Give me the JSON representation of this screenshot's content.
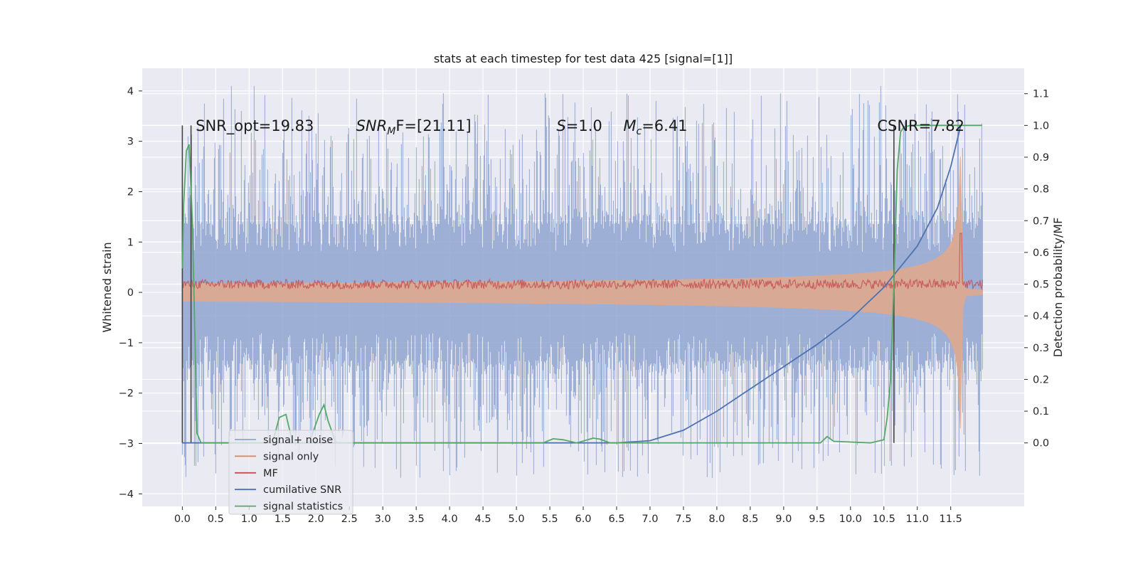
{
  "chart_data": {
    "type": "line",
    "title": "stats at each timestep for test data 425 [signal=[1]]",
    "xlabel": "",
    "ylabel": "Whitened strain",
    "ylabel_right": "Detection probability/MF",
    "xlim": [
      -0.6,
      12.6
    ],
    "ylim": [
      -4.25,
      4.45
    ],
    "ylim_right": [
      -0.2,
      1.18
    ],
    "x_ticks": [
      "0.0",
      "0.5",
      "1.0",
      "1.5",
      "2.0",
      "2.5",
      "3.0",
      "3.5",
      "4.0",
      "4.5",
      "5.0",
      "5.5",
      "6.0",
      "6.5",
      "7.0",
      "7.5",
      "8.0",
      "8.5",
      "9.0",
      "9.5",
      "10.0",
      "10.5",
      "11.0",
      "11.5"
    ],
    "y_ticks": [
      "4",
      "3",
      "2",
      "1",
      "0",
      "−1",
      "−2",
      "−3",
      "−4"
    ],
    "y_ticks_right": [
      "1.1",
      "1.0",
      "0.9",
      "0.8",
      "0.7",
      "0.6",
      "0.5",
      "0.4",
      "0.3",
      "0.2",
      "0.1",
      "0.0"
    ],
    "grid": true,
    "legend_placement": "lower-left",
    "annotations": [
      {
        "text": "SNR_opt=19.83",
        "x": 0.2
      },
      {
        "text": "SNR",
        "sub": "M",
        "tail": "F=[21.11]",
        "x": 2.6
      },
      {
        "text": "S",
        "tail": "=1.0",
        "x": 5.6
      },
      {
        "text": "M",
        "sub": "c",
        "tail": "=6.41",
        "x": 6.6
      },
      {
        "text": "CSNR=7.82",
        "x": 10.4
      }
    ],
    "vlines": [
      0.0,
      0.13,
      10.65
    ],
    "series": [
      {
        "name": "signal+ noise",
        "color": "#8fa5d0",
        "axis": "left",
        "envelope_typical": 1.35,
        "peak": 4.1,
        "x_range": [
          0.0,
          11.98
        ]
      },
      {
        "name": "signal only",
        "color": "#dd8452",
        "axis": "left",
        "envelope_start": 0.05,
        "envelope_end": 2.7,
        "merger_time": 11.65
      },
      {
        "name": "MF",
        "color": "#c44e52",
        "axis": "right",
        "typical": 0.5,
        "spike": 0.66
      },
      {
        "name": "cumilative SNR",
        "color": "#4c72b0",
        "axis": "right",
        "x": [
          0.0,
          6.5,
          7.0,
          7.5,
          8.0,
          8.5,
          9.0,
          9.5,
          10.0,
          10.5,
          11.0,
          11.3,
          11.5,
          11.65
        ],
        "y": [
          0.0,
          0.0,
          0.007,
          0.04,
          0.1,
          0.17,
          0.24,
          0.31,
          0.39,
          0.49,
          0.62,
          0.74,
          0.87,
          1.0
        ]
      },
      {
        "name": "signal statistics",
        "color": "#55a868",
        "axis": "right",
        "x": [
          0.0,
          0.02,
          0.06,
          0.1,
          0.15,
          0.22,
          0.28,
          0.35,
          1.35,
          1.45,
          1.55,
          1.65,
          1.9,
          2.05,
          2.12,
          2.18,
          2.3,
          5.4,
          5.55,
          5.7,
          5.9,
          6.15,
          6.25,
          6.4,
          9.55,
          9.65,
          9.75,
          10.3,
          10.5,
          10.55,
          10.6,
          10.65,
          10.7,
          10.75,
          10.8,
          10.9,
          11.97
        ],
        "y": [
          0.55,
          0.75,
          0.92,
          0.94,
          0.7,
          0.03,
          0.0,
          0.0,
          0.0,
          0.08,
          0.09,
          0.0,
          0.0,
          0.09,
          0.12,
          0.07,
          0.0,
          0.0,
          0.013,
          0.01,
          0.0,
          0.015,
          0.012,
          0.0,
          0.0,
          0.02,
          0.005,
          0.0,
          0.01,
          0.08,
          0.2,
          0.5,
          0.86,
          0.98,
          0.995,
          1.0,
          1.0
        ]
      }
    ]
  }
}
